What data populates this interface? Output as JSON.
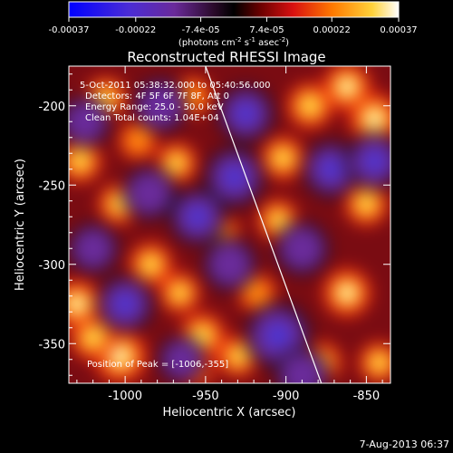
{
  "chart_data": {
    "type": "heatmap",
    "title": "Reconstructed RHESSI Image",
    "xlabel": "Heliocentric X (arcsec)",
    "ylabel": "Heliocentric Y (arcsec)",
    "xlim": [
      -1035,
      -835
    ],
    "ylim": [
      -375,
      -175
    ],
    "x_ticks": [
      -1000,
      -950,
      -900,
      -850
    ],
    "x_tick_labels": [
      "-1000",
      "-950",
      "-900",
      "-850"
    ],
    "y_ticks": [
      -200,
      -250,
      -300,
      -350
    ],
    "y_tick_labels": [
      "-200",
      "-250",
      "-300",
      "-350"
    ],
    "colorbar": {
      "min": -0.00037,
      "max": 0.00037,
      "ticks": [
        -0.00037,
        -0.00022,
        -7.4e-05,
        7.4e-05,
        0.00022,
        0.00037
      ],
      "tick_labels": [
        "-0.00037",
        "-0.00022",
        "-7.4e-05",
        "7.4e-05",
        "0.00022",
        "0.00037"
      ],
      "units_label": "(photons cm",
      "units_label_exp1": "-2",
      "units_label_mid": " s",
      "units_label_exp2": "-1",
      "units_label_end": " asec",
      "units_label_exp3": "-2",
      "units_label_close": ")",
      "colormap": "blue-purple-black-red-orange-yellow-white"
    },
    "annotations": [
      "5-Oct-2011 05:38:32.000 to 05:40:56.000",
      "Detectors: 4F 5F 6F 7F 8F, Att 0",
      "Energy Range: 25.0 - 50.0 keV",
      "Clean     Total counts: 1.04E+04"
    ],
    "peak_label": "Position of Peak = [-1006,-355]",
    "peak_position": [
      -1006,
      -355
    ],
    "limb_line": [
      [
        -950,
        -175
      ],
      [
        -878,
        -375
      ]
    ],
    "sources": [
      {
        "x": -1003,
        "y": -358,
        "sign": 1,
        "amp": 1.0
      },
      {
        "x": -1020,
        "y": -346,
        "sign": 1,
        "amp": 0.7
      },
      {
        "x": -1030,
        "y": -325,
        "sign": 1,
        "amp": 0.8
      },
      {
        "x": -1028,
        "y": -235,
        "sign": 1,
        "amp": 0.6
      },
      {
        "x": -1012,
        "y": -195,
        "sign": 1,
        "amp": 0.5
      },
      {
        "x": -992,
        "y": -222,
        "sign": 1,
        "amp": 0.4
      },
      {
        "x": -968,
        "y": -236,
        "sign": 1,
        "amp": 0.5
      },
      {
        "x": -958,
        "y": -194,
        "sign": 1,
        "amp": 0.4
      },
      {
        "x": -1004,
        "y": -262,
        "sign": 1,
        "amp": 0.5
      },
      {
        "x": -984,
        "y": -300,
        "sign": 1,
        "amp": 0.6
      },
      {
        "x": -966,
        "y": -318,
        "sign": 1,
        "amp": 0.5
      },
      {
        "x": -952,
        "y": -345,
        "sign": 1,
        "amp": 0.7
      },
      {
        "x": -958,
        "y": -365,
        "sign": 1,
        "amp": 0.6
      },
      {
        "x": -930,
        "y": -358,
        "sign": 1,
        "amp": 0.5
      },
      {
        "x": -918,
        "y": -318,
        "sign": 1,
        "amp": 0.4
      },
      {
        "x": -905,
        "y": -272,
        "sign": 1,
        "amp": 0.5
      },
      {
        "x": -902,
        "y": -233,
        "sign": 1,
        "amp": 0.6
      },
      {
        "x": -885,
        "y": -200,
        "sign": 1,
        "amp": 0.7
      },
      {
        "x": -862,
        "y": -188,
        "sign": 1,
        "amp": 0.8
      },
      {
        "x": -845,
        "y": -208,
        "sign": 1,
        "amp": 0.9
      },
      {
        "x": -850,
        "y": -262,
        "sign": 1,
        "amp": 0.6
      },
      {
        "x": -862,
        "y": -318,
        "sign": 1,
        "amp": 0.8
      },
      {
        "x": -878,
        "y": -362,
        "sign": 1,
        "amp": 0.5
      },
      {
        "x": -842,
        "y": -362,
        "sign": 1,
        "amp": 0.5
      },
      {
        "x": -940,
        "y": -280,
        "sign": 1,
        "amp": 0.3
      },
      {
        "x": -1000,
        "y": -325,
        "sign": -1,
        "amp": 0.6
      },
      {
        "x": -985,
        "y": -255,
        "sign": -1,
        "amp": 0.5
      },
      {
        "x": -955,
        "y": -270,
        "sign": -1,
        "amp": 0.6
      },
      {
        "x": -932,
        "y": -245,
        "sign": -1,
        "amp": 0.7
      },
      {
        "x": -925,
        "y": -205,
        "sign": -1,
        "amp": 0.6
      },
      {
        "x": -935,
        "y": -300,
        "sign": -1,
        "amp": 0.5
      },
      {
        "x": -905,
        "y": -345,
        "sign": -1,
        "amp": 0.9
      },
      {
        "x": -890,
        "y": -290,
        "sign": -1,
        "amp": 0.5
      },
      {
        "x": -872,
        "y": -240,
        "sign": -1,
        "amp": 0.6
      },
      {
        "x": -845,
        "y": -235,
        "sign": -1,
        "amp": 0.6
      },
      {
        "x": -1020,
        "y": -290,
        "sign": -1,
        "amp": 0.4
      },
      {
        "x": -1025,
        "y": -210,
        "sign": -1,
        "amp": 0.4
      },
      {
        "x": -978,
        "y": -200,
        "sign": -1,
        "amp": 0.5
      },
      {
        "x": -890,
        "y": -370,
        "sign": -1,
        "amp": 0.5
      },
      {
        "x": -965,
        "y": -360,
        "sign": -1,
        "amp": 0.3
      }
    ]
  },
  "footer": {
    "date": "7-Aug-2013 06:37"
  }
}
